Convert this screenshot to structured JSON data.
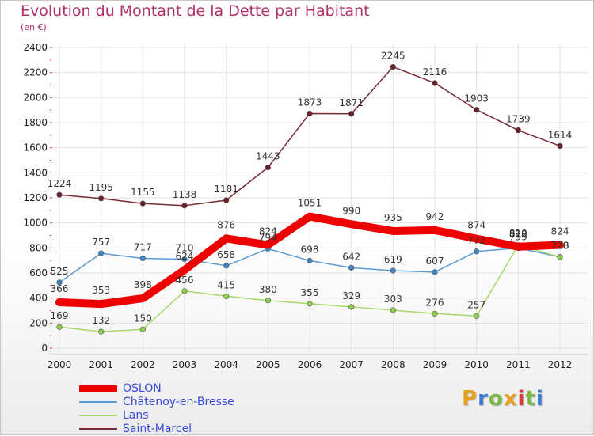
{
  "header": {
    "title": "Evolution du Montant de la Dette par Habitant",
    "subtitle": "(en €)"
  },
  "logo": {
    "text": "Proxiti",
    "colors": [
      "#e8a020",
      "#3a7bd5",
      "#7ab648",
      "#e8a020",
      "#d83a3a",
      "#7ab648",
      "#3a7bd5"
    ]
  },
  "chart_data": {
    "type": "line",
    "title": "Evolution du Montant de la Dette par Habitant",
    "subtitle": "(en €)",
    "xlabel": "",
    "ylabel": "",
    "x": [
      "2000",
      "2001",
      "2002",
      "2003",
      "2004",
      "2005",
      "2006",
      "2007",
      "2008",
      "2009",
      "2010",
      "2011",
      "2012"
    ],
    "ylim": [
      0,
      2400
    ],
    "yticks": [
      0,
      200,
      400,
      600,
      800,
      1000,
      1200,
      1400,
      1600,
      1800,
      2000,
      2200,
      2400
    ],
    "grid": true,
    "legend_position": "bottom-left",
    "series": [
      {
        "name": "OSLON",
        "color": "#ee0000",
        "values": [
          366,
          353,
          398,
          624,
          876,
          824,
          1051,
          990,
          935,
          942,
          874,
          810,
          824
        ]
      },
      {
        "name": "Châtenoy-en-Bresse",
        "color": "#5b9bd5",
        "values": [
          525,
          757,
          717,
          710,
          658,
          794,
          698,
          642,
          619,
          607,
          772,
          799,
          728
        ]
      },
      {
        "name": "Lans",
        "color": "#a6d96a",
        "values": [
          169,
          132,
          150,
          456,
          415,
          380,
          355,
          329,
          303,
          276,
          257,
          822,
          728
        ]
      },
      {
        "name": "Saint-Marcel",
        "color": "#7a2a35",
        "values": [
          1224,
          1195,
          1155,
          1138,
          1181,
          1443,
          1873,
          1871,
          2245,
          2116,
          1903,
          1739,
          1614
        ]
      }
    ]
  }
}
